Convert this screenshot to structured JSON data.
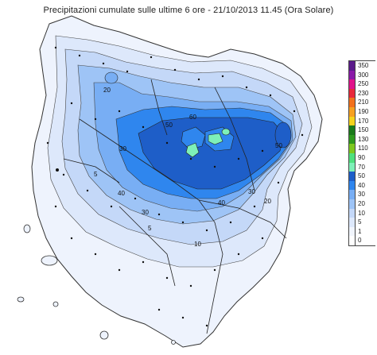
{
  "title": "Precipitazioni cumulate sulle ultime 6 ore - 21/10/2013 11.45 (Ora Solare)",
  "legend": {
    "classes": [
      {
        "label": "350",
        "color": "#5a1a8a"
      },
      {
        "label": "300",
        "color": "#8a1aa8"
      },
      {
        "label": "250",
        "color": "#e0128a"
      },
      {
        "label": "230",
        "color": "#e8283a"
      },
      {
        "label": "210",
        "color": "#f2701c"
      },
      {
        "label": "190",
        "color": "#f6a020"
      },
      {
        "label": "170",
        "color": "#f6d21c"
      },
      {
        "label": "150",
        "color": "#1a7a1a"
      },
      {
        "label": "130",
        "color": "#2e9a1e"
      },
      {
        "label": "110",
        "color": "#7ec81e"
      },
      {
        "label": "90",
        "color": "#4ee07e"
      },
      {
        "label": "70",
        "color": "#7ef0b8"
      },
      {
        "label": "50",
        "color": "#1e5ec8"
      },
      {
        "label": "40",
        "color": "#2f86ee"
      },
      {
        "label": "30",
        "color": "#78aef4"
      },
      {
        "label": "20",
        "color": "#9ec4f6"
      },
      {
        "label": "10",
        "color": "#c4d8f8"
      },
      {
        "label": "5",
        "color": "#dde8fb"
      },
      {
        "label": "1",
        "color": "#f1f5fd"
      },
      {
        "label": "0",
        "color": "#ffffff"
      }
    ]
  },
  "contour_labels": [
    "20",
    "30",
    "40",
    "5",
    "50",
    "40",
    "30",
    "20",
    "30",
    "10",
    "5",
    "60",
    "50"
  ]
}
